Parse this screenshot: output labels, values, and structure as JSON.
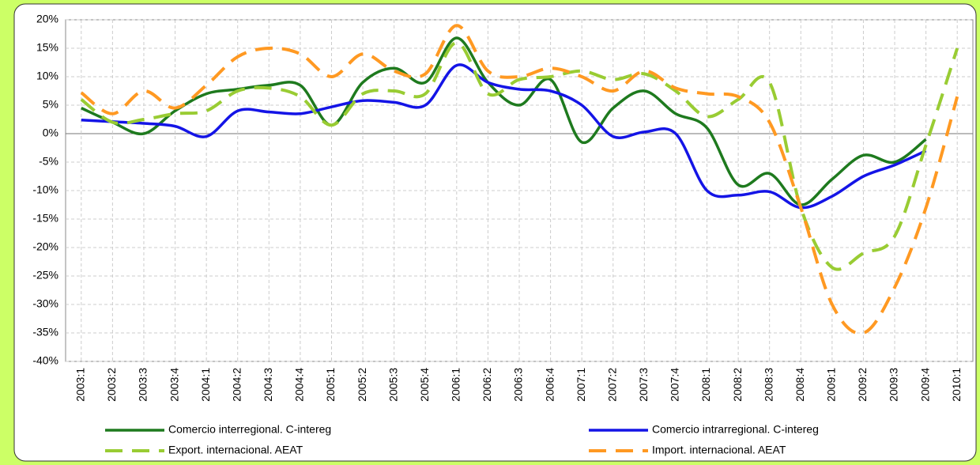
{
  "chart_data": {
    "type": "line",
    "categories": [
      "2003:1",
      "2003:2",
      "2003:3",
      "2003:4",
      "2004:1",
      "2004:2",
      "2004:3",
      "2004:4",
      "2005:1",
      "2005:2",
      "2005:3",
      "2005:4",
      "2006:1",
      "2006:2",
      "2006:3",
      "2006:4",
      "2007:1",
      "2007:2",
      "2007:3",
      "2007:4",
      "2008:1",
      "2008:2",
      "2008:3",
      "2008:4",
      "2009:1",
      "2009:2",
      "2009:3",
      "2009:4",
      "2010:1"
    ],
    "series": [
      {
        "name": "Comercio interregional. C-intereg",
        "color": "#1e7a1e",
        "dash": false,
        "values": [
          4.5,
          2,
          0,
          4,
          7,
          7.8,
          8.5,
          8.5,
          1.5,
          9,
          11.5,
          9,
          16.8,
          9,
          5,
          9.5,
          -1.5,
          4.5,
          7.5,
          3.5,
          1,
          -9,
          -7,
          -12.5,
          -8,
          -3.8,
          -5,
          -1,
          null
        ]
      },
      {
        "name": "Comercio intrarregional. C-intereg",
        "color": "#1414e6",
        "dash": false,
        "values": [
          2.4,
          2.1,
          1.8,
          1.3,
          -0.5,
          4,
          3.8,
          3.5,
          4.7,
          5.8,
          5.5,
          5,
          12,
          9,
          7.8,
          7.5,
          5,
          -0.5,
          0.3,
          0,
          -10,
          -10.8,
          -10.2,
          -13,
          -11,
          -7.5,
          -5.5,
          -3,
          null
        ]
      },
      {
        "name": "Export. internacional. AEAT",
        "color": "#99cc33",
        "dash": true,
        "values": [
          6,
          2,
          2.5,
          3.5,
          4,
          7.5,
          8,
          6.5,
          1.5,
          7,
          7.5,
          7,
          16,
          7,
          9.5,
          10,
          11,
          9.5,
          10.5,
          7.5,
          3,
          6,
          9,
          -13,
          -23.5,
          -21,
          -18,
          -2,
          15
        ]
      },
      {
        "name": "Import. internacional. AEAT",
        "color": "#ff9922",
        "dash": true,
        "values": [
          7.2,
          3.5,
          7.5,
          4.5,
          8.5,
          13.5,
          15,
          14,
          10,
          14,
          11,
          10.5,
          19,
          11,
          10,
          11.5,
          10,
          7.5,
          11,
          8,
          7,
          6.5,
          2,
          -13,
          -30,
          -35,
          -27,
          -13,
          6.5
        ]
      }
    ],
    "ylim": [
      -40,
      20
    ],
    "yticks": [
      {
        "value": -40,
        "label": "-40%"
      },
      {
        "value": -35,
        "label": "-35%"
      },
      {
        "value": -30,
        "label": "-30%"
      },
      {
        "value": -25,
        "label": "-25%"
      },
      {
        "value": -20,
        "label": "-20%"
      },
      {
        "value": -15,
        "label": "-15%"
      },
      {
        "value": -10,
        "label": "-10%"
      },
      {
        "value": -5,
        "label": "-5%"
      },
      {
        "value": 0,
        "label": "0%"
      },
      {
        "value": 5,
        "label": "5%"
      },
      {
        "value": 10,
        "label": "10%"
      },
      {
        "value": 15,
        "label": "15%"
      },
      {
        "value": 20,
        "label": "20%"
      }
    ],
    "grid": true
  }
}
